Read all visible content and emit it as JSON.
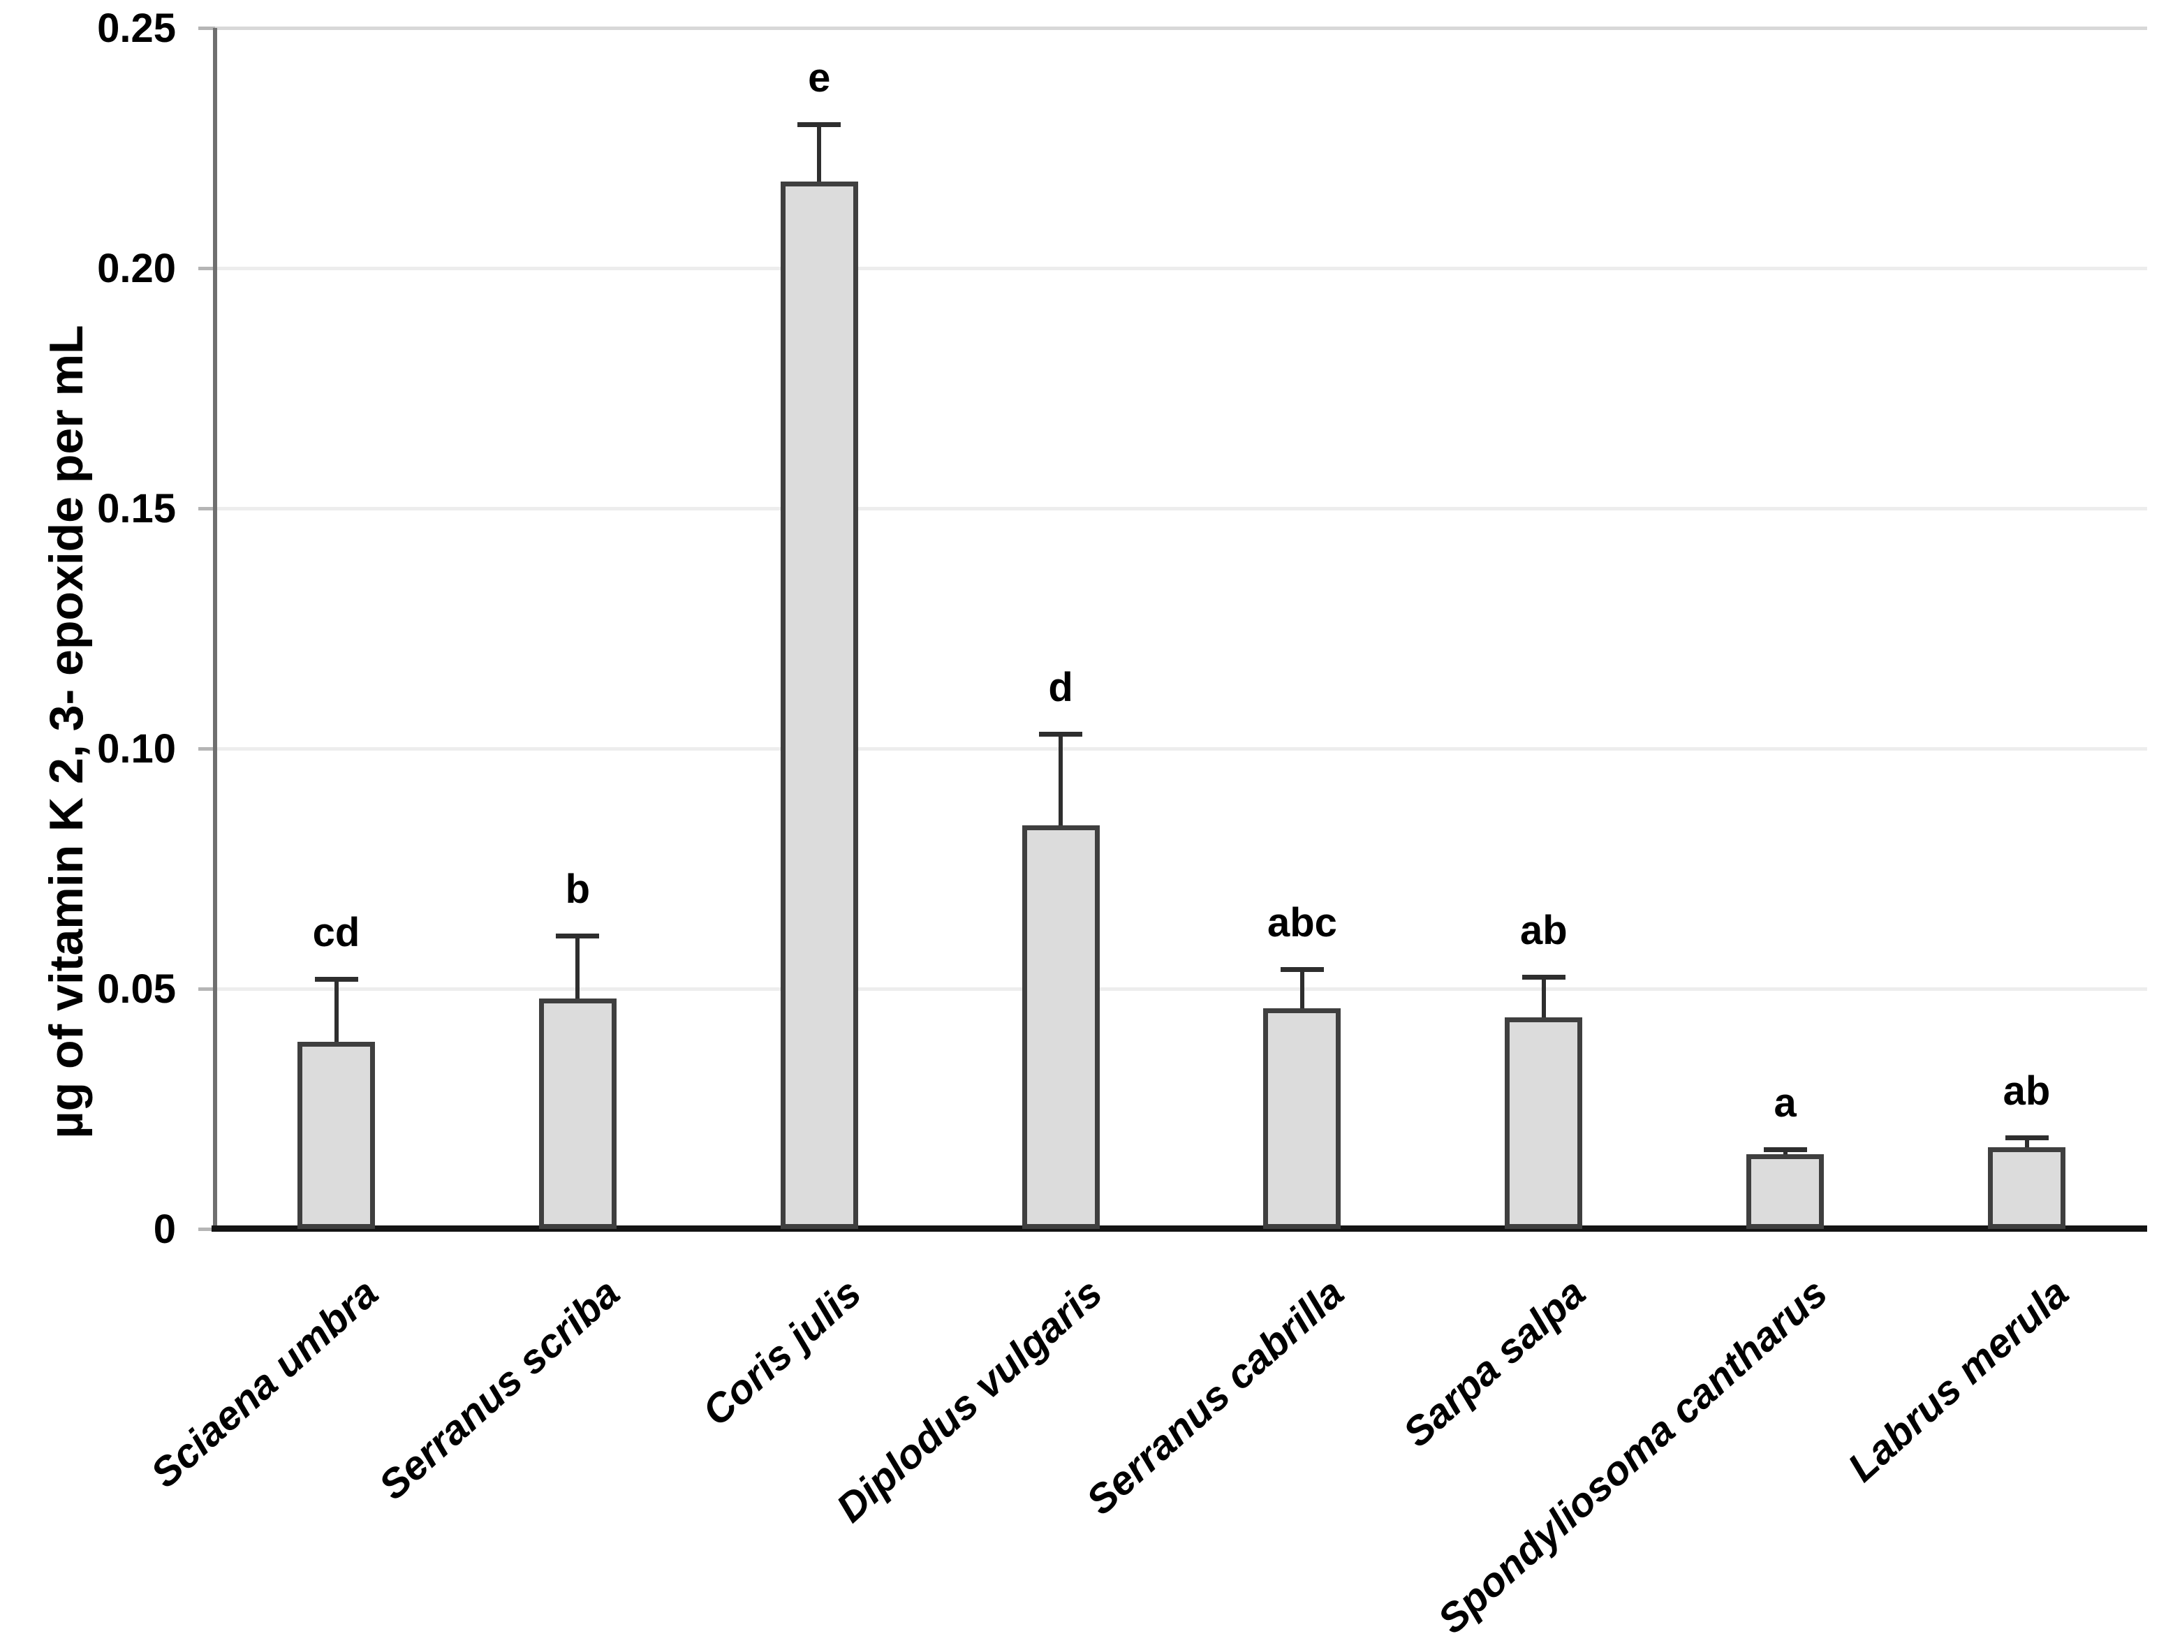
{
  "chart_data": {
    "type": "bar",
    "title": "",
    "xlabel": "",
    "ylabel": "µg of vitamin K 2, 3- epoxide per mL",
    "ylim": [
      0,
      0.25
    ],
    "grid": "faint horizontal gridlines at each 0.05 step; light gray top border",
    "legend": "none",
    "y_ticks": [
      {
        "label": "0.25",
        "value": 0.25
      },
      {
        "label": "0.20",
        "value": 0.2
      },
      {
        "label": "0.15",
        "value": 0.15
      },
      {
        "label": "0.10",
        "value": 0.1
      },
      {
        "label": "0.05",
        "value": 0.05
      },
      {
        "label": "0",
        "value": 0
      }
    ],
    "categories": [
      "Sciaena umbra",
      "Serranus scriba",
      "Coris julis",
      "Diplodus vulgaris",
      "Serranus cabrilla",
      "Sarpa salpa",
      "Spondyliosoma cantharus",
      "Labrus merula"
    ],
    "values": [
      0.039,
      0.048,
      0.218,
      0.084,
      0.046,
      0.044,
      0.0155,
      0.017
    ],
    "errors_sd": [
      0.013,
      0.013,
      0.012,
      0.019,
      0.008,
      0.0085,
      0.001,
      0.002
    ],
    "significance_letters": [
      "cd",
      "b",
      "e",
      "d",
      "abc",
      "ab",
      "a",
      "ab"
    ]
  },
  "colors": {
    "bar_fill": "#dcdcdc",
    "bar_border": "#3f3f3f",
    "error_bar": "#2e2e2e",
    "x_axis": "#141414",
    "y_axis": "#6f6f6f",
    "gridline": "#ededed",
    "plot_top_border": "#d8d8d8",
    "tick_mark": "#b5b5b5",
    "text": "#000000"
  }
}
